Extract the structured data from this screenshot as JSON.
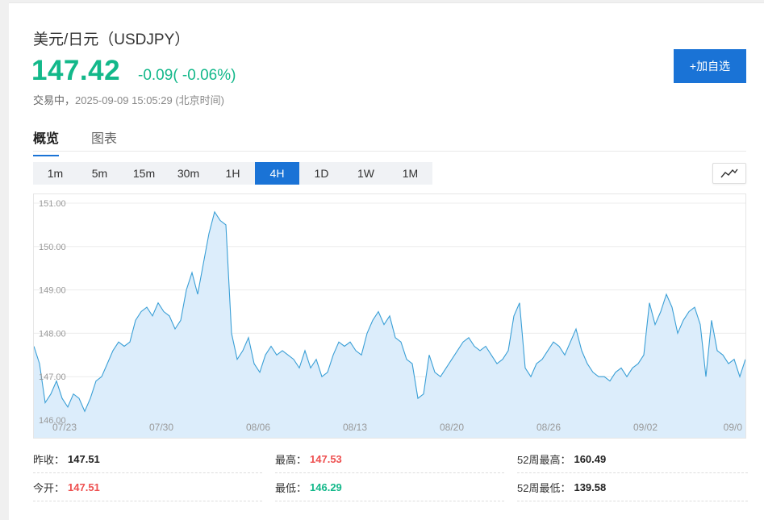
{
  "quote": {
    "title": "美元/日元（USDJPY）",
    "price": "147.42",
    "change": "-0.09",
    "change_pct": "( -0.06%)",
    "status": "交易中，",
    "timestamp": "2025-09-09 15:05:29 (北京时间)"
  },
  "actions": {
    "add_watchlist": "+加自选"
  },
  "tabs": [
    {
      "label": "概览",
      "active": true
    },
    {
      "label": "图表",
      "active": false
    }
  ],
  "periods": [
    "1m",
    "5m",
    "15m",
    "30m",
    "1H",
    "4H",
    "1D",
    "1W",
    "1M"
  ],
  "active_period": "4H",
  "chart_toggle_icon": "line-chart-icon",
  "colors": {
    "up": "#13b88a",
    "down_red": "#ee5050",
    "accent": "#1a73d6",
    "line": "#3a9fd6",
    "fill": "#dcedfb"
  },
  "stats": {
    "prev_close": {
      "label": "昨收：",
      "value": "147.51"
    },
    "open": {
      "label": "今开：",
      "value": "147.51"
    },
    "high": {
      "label": "最高：",
      "value": "147.53"
    },
    "low": {
      "label": "最低：",
      "value": "146.29"
    },
    "high52": {
      "label": "52周最高：",
      "value": "160.49"
    },
    "low52": {
      "label": "52周最低：",
      "value": "139.58"
    }
  },
  "chart_data": {
    "type": "area",
    "ylim": [
      146.0,
      151.0
    ],
    "y_ticks": [
      "151.00",
      "150.00",
      "149.00",
      "148.00",
      "147.00",
      "146.00"
    ],
    "x_tick_labels": [
      "07/23",
      "07/30",
      "08/06",
      "08/13",
      "08/20",
      "08/26",
      "09/02",
      "09/0"
    ],
    "grid": true,
    "values": [
      147.7,
      147.3,
      146.4,
      146.6,
      146.9,
      146.5,
      146.3,
      146.6,
      146.5,
      146.2,
      146.5,
      146.9,
      147.0,
      147.3,
      147.6,
      147.8,
      147.7,
      147.8,
      148.3,
      148.5,
      148.6,
      148.4,
      148.7,
      148.5,
      148.4,
      148.1,
      148.3,
      149.0,
      149.4,
      148.9,
      149.6,
      150.3,
      150.8,
      150.6,
      150.5,
      148.0,
      147.4,
      147.6,
      147.9,
      147.3,
      147.1,
      147.5,
      147.7,
      147.5,
      147.6,
      147.5,
      147.4,
      147.2,
      147.6,
      147.2,
      147.4,
      147.0,
      147.1,
      147.5,
      147.8,
      147.7,
      147.8,
      147.6,
      147.5,
      148.0,
      148.3,
      148.5,
      148.2,
      148.4,
      147.9,
      147.8,
      147.4,
      147.3,
      146.5,
      146.6,
      147.5,
      147.1,
      147.0,
      147.2,
      147.4,
      147.6,
      147.8,
      147.9,
      147.7,
      147.6,
      147.7,
      147.5,
      147.3,
      147.4,
      147.6,
      148.4,
      148.7,
      147.2,
      147.0,
      147.3,
      147.4,
      147.6,
      147.8,
      147.7,
      147.5,
      147.8,
      148.1,
      147.6,
      147.3,
      147.1,
      147.0,
      147.0,
      146.9,
      147.1,
      147.2,
      147.0,
      147.2,
      147.3,
      147.5,
      148.7,
      148.2,
      148.5,
      148.9,
      148.6,
      148.0,
      148.3,
      148.5,
      148.6,
      148.2,
      147.0,
      148.3,
      147.6,
      147.5,
      147.3,
      147.4,
      147.0,
      147.4
    ]
  }
}
